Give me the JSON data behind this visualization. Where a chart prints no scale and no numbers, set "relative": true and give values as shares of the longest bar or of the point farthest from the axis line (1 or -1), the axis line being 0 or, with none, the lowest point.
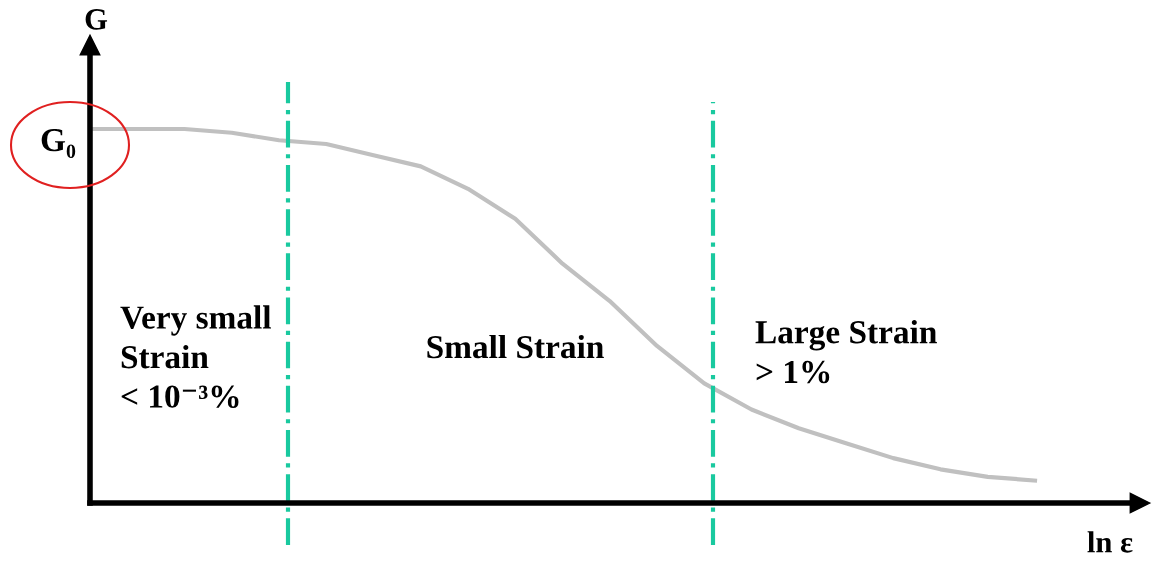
{
  "chart_data": {
    "type": "line",
    "relative": true,
    "xlabel": "ln ε",
    "ylabel": "G",
    "categories": [
      null,
      null,
      null,
      null,
      null,
      null,
      null,
      null,
      null,
      null,
      null,
      null,
      null,
      null,
      null,
      null,
      null,
      null,
      null,
      null,
      null
    ],
    "series": [
      {
        "color": "#c0c0c0",
        "values": [
          1.0,
          1.0,
          1.0,
          0.99,
          0.97,
          0.96,
          0.93,
          0.9,
          0.84,
          0.76,
          0.64,
          0.54,
          0.42,
          0.32,
          0.25,
          0.2,
          0.16,
          0.12,
          0.09,
          0.07,
          0.06
        ]
      }
    ],
    "annotations": [
      "G₀",
      "Very small\nStrain\n< 10⁻³%",
      "Small Strain",
      "Large Strain\n> 1%"
    ],
    "legend": false,
    "marker": "none",
    "line_style": "solid"
  }
}
